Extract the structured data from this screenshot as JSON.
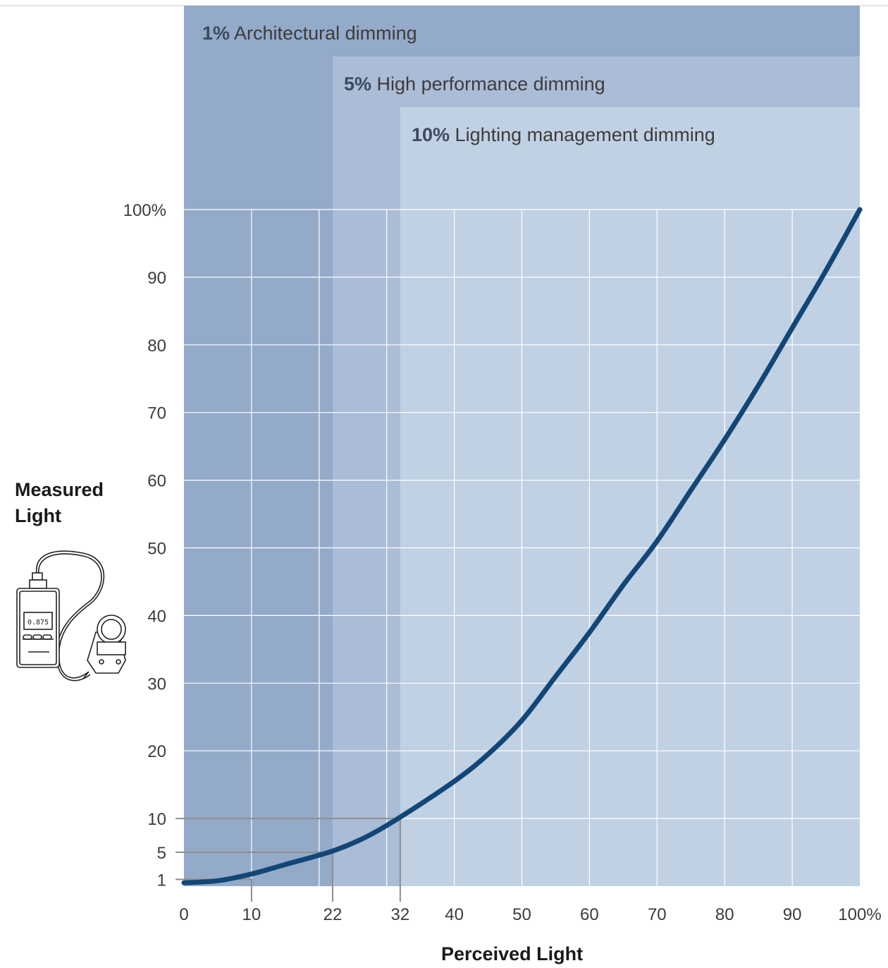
{
  "colors": {
    "band_1": "#94aac9",
    "band_5": "#abbcd6",
    "band_10": "#c1d1e4",
    "grid": "#ffffff",
    "curve": "#124677",
    "guide": "#8e8e8e",
    "text": "#3c3c3c",
    "bold_text": "#3c4a5c"
  },
  "dimming_bands": [
    {
      "pct": "1%",
      "label": "Architectural dimming",
      "perceived_start": 0
    },
    {
      "pct": "5%",
      "label": "High performance dimming",
      "perceived_start": 22
    },
    {
      "pct": "10%",
      "label": "Lighting management dimming",
      "perceived_start": 32
    }
  ],
  "measured_label_line1": "Measured",
  "measured_label_line2": "Light",
  "perceived_label": "Perceived Light",
  "meter_icon": "light-meter-icon",
  "meter_display": "0.875",
  "chart_data": {
    "type": "line",
    "xlabel": "Perceived Light",
    "ylabel": "Measured Light",
    "xlim": [
      0,
      100
    ],
    "ylim": [
      0,
      100
    ],
    "x_ticks": [
      {
        "v": 0,
        "label": "0"
      },
      {
        "v": 10,
        "label": "10"
      },
      {
        "v": 22,
        "label": "22"
      },
      {
        "v": 32,
        "label": "32"
      },
      {
        "v": 40,
        "label": "40"
      },
      {
        "v": 50,
        "label": "50"
      },
      {
        "v": 60,
        "label": "60"
      },
      {
        "v": 70,
        "label": "70"
      },
      {
        "v": 80,
        "label": "80"
      },
      {
        "v": 90,
        "label": "90"
      },
      {
        "v": 100,
        "label": "100%"
      }
    ],
    "y_ticks": [
      {
        "v": 1,
        "label": "1"
      },
      {
        "v": 5,
        "label": "5"
      },
      {
        "v": 10,
        "label": "10"
      },
      {
        "v": 20,
        "label": "20"
      },
      {
        "v": 30,
        "label": "30"
      },
      {
        "v": 40,
        "label": "40"
      },
      {
        "v": 50,
        "label": "50"
      },
      {
        "v": 60,
        "label": "60"
      },
      {
        "v": 70,
        "label": "70"
      },
      {
        "v": 80,
        "label": "80"
      },
      {
        "v": 90,
        "label": "90"
      },
      {
        "v": 100,
        "label": "100%"
      }
    ],
    "x_grid": [
      10,
      20,
      30,
      40,
      50,
      60,
      70,
      80,
      90
    ],
    "y_grid": [
      10,
      20,
      30,
      40,
      50,
      60,
      70,
      80,
      90
    ],
    "series": [
      {
        "x": [
          0,
          5,
          10,
          15,
          22,
          27,
          32,
          40,
          45,
          50,
          55,
          60,
          65,
          70,
          75,
          80,
          85,
          90,
          95,
          100
        ],
        "y": [
          0.5,
          0.8,
          1.8,
          3.2,
          5.2,
          7.3,
          10.2,
          15.5,
          19.5,
          24.5,
          31,
          37.5,
          44.5,
          51,
          58.5,
          66,
          74,
          82.5,
          91,
          100
        ]
      }
    ],
    "guides": [
      {
        "x": 10,
        "y": 1
      },
      {
        "x": 22,
        "y": 5
      },
      {
        "x": 32,
        "y": 10
      }
    ]
  }
}
